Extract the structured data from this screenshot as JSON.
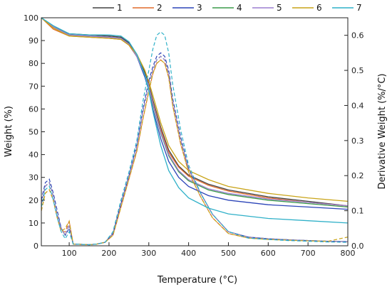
{
  "chart_data": {
    "type": "line",
    "title": "",
    "xlabel": "Temperature (°C)",
    "ylabel_left": "Weight (%)",
    "ylabel_right": "Derivative Weight (%/°C)",
    "xlim": [
      30,
      800
    ],
    "ylim_left": [
      0,
      100
    ],
    "ylim_right": [
      0,
      0.65
    ],
    "xticks": [
      100,
      200,
      300,
      400,
      500,
      600,
      700,
      800
    ],
    "yticks_left": [
      0,
      10,
      20,
      30,
      40,
      50,
      60,
      70,
      80,
      90,
      100
    ],
    "yticks_right": [
      0.0,
      0.1,
      0.2,
      0.3,
      0.4,
      0.5,
      0.6
    ],
    "grid": false,
    "legend_position": "top-right",
    "series": [
      {
        "name": "1",
        "color": "#404040",
        "weight": {
          "x": [
            30,
            60,
            100,
            150,
            200,
            230,
            250,
            270,
            290,
            300,
            310,
            330,
            350,
            375,
            400,
            450,
            500,
            600,
            700,
            800
          ],
          "y": [
            100,
            96,
            93,
            92.5,
            92,
            91.5,
            89,
            84,
            76,
            71,
            64,
            52,
            42,
            35,
            31,
            27,
            24.5,
            21.5,
            19.5,
            17.5
          ]
        },
        "dtg": {
          "x": [
            30,
            40,
            50,
            60,
            70,
            80,
            90,
            100,
            110,
            130,
            150,
            170,
            190,
            210,
            230,
            250,
            270,
            285,
            300,
            310,
            320,
            330,
            340,
            350,
            360,
            380,
            400,
            430,
            460,
            500,
            550,
            600,
            650,
            700,
            750,
            800
          ],
          "y": [
            0.12,
            0.17,
            0.18,
            0.14,
            0.09,
            0.05,
            0.03,
            0.06,
            0.005,
            0.004,
            0.003,
            0.005,
            0.01,
            0.035,
            0.12,
            0.2,
            0.28,
            0.38,
            0.46,
            0.5,
            0.53,
            0.54,
            0.53,
            0.49,
            0.41,
            0.3,
            0.22,
            0.15,
            0.09,
            0.04,
            0.025,
            0.02,
            0.017,
            0.015,
            0.013,
            0.012
          ]
        }
      },
      {
        "name": "2",
        "color": "#e06a2a",
        "weight": {
          "x": [
            30,
            60,
            100,
            150,
            200,
            230,
            250,
            270,
            290,
            300,
            310,
            330,
            350,
            375,
            400,
            450,
            500,
            600,
            700,
            800
          ],
          "y": [
            100,
            95,
            92,
            91.5,
            91,
            90.5,
            88,
            83,
            75,
            70,
            63,
            51,
            41,
            34.5,
            30.5,
            26.5,
            24,
            21,
            19,
            17.5
          ]
        },
        "dtg": {
          "x": [
            30,
            40,
            50,
            60,
            70,
            80,
            90,
            100,
            110,
            130,
            150,
            170,
            190,
            210,
            230,
            250,
            270,
            285,
            300,
            310,
            320,
            330,
            340,
            350,
            360,
            380,
            400,
            430,
            460,
            500,
            550,
            600,
            650,
            700,
            750,
            800
          ],
          "y": [
            0.1,
            0.15,
            0.16,
            0.13,
            0.08,
            0.04,
            0.04,
            0.07,
            0.005,
            0.004,
            0.003,
            0.005,
            0.01,
            0.03,
            0.11,
            0.19,
            0.27,
            0.36,
            0.44,
            0.49,
            0.52,
            0.53,
            0.52,
            0.48,
            0.4,
            0.29,
            0.21,
            0.14,
            0.08,
            0.035,
            0.022,
            0.018,
            0.016,
            0.014,
            0.012,
            0.011
          ]
        }
      },
      {
        "name": "3",
        "color": "#2b44b8",
        "weight": {
          "x": [
            30,
            60,
            100,
            150,
            200,
            230,
            250,
            270,
            290,
            300,
            310,
            330,
            350,
            375,
            400,
            450,
            500,
            600,
            700,
            800
          ],
          "y": [
            100,
            96,
            92.5,
            92,
            91.5,
            91,
            88.5,
            83,
            74,
            68,
            60,
            47,
            37,
            30,
            26,
            22,
            20,
            18,
            17,
            16
          ]
        },
        "dtg": {
          "x": [
            30,
            40,
            50,
            60,
            70,
            80,
            90,
            100,
            110,
            130,
            150,
            170,
            190,
            210,
            230,
            250,
            270,
            285,
            300,
            310,
            320,
            330,
            340,
            350,
            360,
            380,
            400,
            430,
            460,
            500,
            550,
            600,
            650,
            700,
            750,
            800
          ],
          "y": [
            0.13,
            0.18,
            0.19,
            0.15,
            0.1,
            0.05,
            0.03,
            0.05,
            0.005,
            0.004,
            0.003,
            0.005,
            0.01,
            0.035,
            0.12,
            0.2,
            0.29,
            0.39,
            0.47,
            0.51,
            0.54,
            0.55,
            0.54,
            0.5,
            0.42,
            0.31,
            0.22,
            0.15,
            0.09,
            0.04,
            0.025,
            0.02,
            0.017,
            0.015,
            0.013,
            0.012
          ]
        }
      },
      {
        "name": "4",
        "color": "#3a9a4a",
        "weight": {
          "x": [
            30,
            60,
            100,
            150,
            200,
            230,
            250,
            270,
            290,
            300,
            310,
            330,
            350,
            375,
            400,
            450,
            500,
            600,
            700,
            800
          ],
          "y": [
            100,
            96,
            92.5,
            92,
            91.5,
            91,
            88.5,
            83,
            75,
            69.5,
            62,
            49.5,
            39.5,
            32.5,
            28.5,
            24.5,
            22.5,
            20,
            18.5,
            17
          ]
        },
        "dtg": {
          "x": [
            30,
            40,
            50,
            60,
            70,
            80,
            90,
            100,
            110,
            130,
            150,
            170,
            190,
            210,
            230,
            250,
            270,
            285,
            300,
            310,
            320,
            330,
            340,
            350,
            360,
            380,
            400,
            430,
            460,
            500,
            550,
            600,
            650,
            700,
            750,
            800
          ],
          "y": [
            0.12,
            0.17,
            0.18,
            0.14,
            0.09,
            0.05,
            0.03,
            0.06,
            0.005,
            0.004,
            0.003,
            0.005,
            0.01,
            0.035,
            0.12,
            0.2,
            0.28,
            0.38,
            0.46,
            0.5,
            0.53,
            0.54,
            0.53,
            0.49,
            0.41,
            0.3,
            0.22,
            0.15,
            0.09,
            0.04,
            0.025,
            0.02,
            0.017,
            0.015,
            0.013,
            0.012
          ]
        }
      },
      {
        "name": "5",
        "color": "#9b7fd0",
        "weight": {
          "x": [
            30,
            60,
            100,
            150,
            200,
            230,
            250,
            270,
            290,
            300,
            310,
            330,
            350,
            375,
            400,
            450,
            500,
            600,
            700,
            800
          ],
          "y": [
            100,
            96,
            92.5,
            92,
            91.5,
            91,
            88.5,
            83,
            75,
            70,
            62.5,
            50,
            40,
            33,
            29,
            25,
            23,
            20.5,
            19,
            17.5
          ]
        },
        "dtg": {
          "x": [
            30,
            40,
            50,
            60,
            70,
            80,
            90,
            100,
            110,
            130,
            150,
            170,
            190,
            210,
            230,
            250,
            270,
            285,
            300,
            310,
            320,
            330,
            340,
            350,
            360,
            380,
            400,
            430,
            460,
            500,
            550,
            600,
            650,
            700,
            750,
            800
          ],
          "y": [
            0.12,
            0.17,
            0.18,
            0.14,
            0.09,
            0.05,
            0.03,
            0.06,
            0.005,
            0.004,
            0.003,
            0.005,
            0.01,
            0.035,
            0.12,
            0.2,
            0.28,
            0.38,
            0.46,
            0.5,
            0.53,
            0.54,
            0.53,
            0.49,
            0.41,
            0.3,
            0.22,
            0.15,
            0.09,
            0.04,
            0.025,
            0.02,
            0.017,
            0.015,
            0.013,
            0.012
          ]
        }
      },
      {
        "name": "6",
        "color": "#c9a418",
        "weight": {
          "x": [
            30,
            60,
            100,
            150,
            200,
            230,
            250,
            270,
            290,
            300,
            310,
            330,
            350,
            375,
            400,
            450,
            500,
            600,
            700,
            800
          ],
          "y": [
            100,
            95.5,
            92,
            91.5,
            91,
            90.5,
            88,
            84,
            77,
            72,
            66,
            54,
            44,
            37,
            33,
            29,
            26,
            23,
            21,
            19.5
          ]
        },
        "dtg": {
          "x": [
            30,
            40,
            50,
            60,
            70,
            80,
            90,
            100,
            110,
            130,
            150,
            170,
            190,
            210,
            230,
            250,
            270,
            285,
            300,
            310,
            320,
            330,
            340,
            350,
            360,
            380,
            400,
            430,
            460,
            500,
            550,
            600,
            650,
            700,
            750,
            800
          ],
          "y": [
            0.1,
            0.15,
            0.16,
            0.13,
            0.08,
            0.04,
            0.05,
            0.07,
            0.005,
            0.004,
            0.003,
            0.005,
            0.01,
            0.03,
            0.11,
            0.19,
            0.27,
            0.36,
            0.44,
            0.49,
            0.52,
            0.53,
            0.52,
            0.48,
            0.4,
            0.29,
            0.21,
            0.14,
            0.08,
            0.035,
            0.022,
            0.018,
            0.016,
            0.014,
            0.013,
            0.025
          ]
        }
      },
      {
        "name": "7",
        "color": "#2fb0c8",
        "weight": {
          "x": [
            30,
            60,
            100,
            150,
            200,
            230,
            250,
            270,
            290,
            300,
            310,
            330,
            350,
            375,
            400,
            450,
            500,
            600,
            700,
            800
          ],
          "y": [
            100,
            96.5,
            93,
            92.5,
            92.5,
            92,
            89.5,
            84,
            75,
            68,
            59,
            44,
            33,
            25.5,
            21,
            16.5,
            14,
            12,
            11,
            10
          ]
        },
        "dtg": {
          "x": [
            30,
            40,
            50,
            60,
            70,
            80,
            90,
            100,
            110,
            130,
            150,
            170,
            190,
            210,
            230,
            250,
            270,
            285,
            300,
            310,
            320,
            330,
            340,
            350,
            360,
            380,
            400,
            430,
            460,
            500,
            550,
            600,
            650,
            700,
            750,
            800
          ],
          "y": [
            0.11,
            0.16,
            0.17,
            0.13,
            0.08,
            0.04,
            0.02,
            0.04,
            0.005,
            0.004,
            0.003,
            0.005,
            0.01,
            0.04,
            0.13,
            0.21,
            0.3,
            0.41,
            0.5,
            0.56,
            0.6,
            0.61,
            0.6,
            0.55,
            0.46,
            0.33,
            0.23,
            0.15,
            0.09,
            0.04,
            0.022,
            0.018,
            0.015,
            0.013,
            0.011,
            0.01
          ]
        }
      }
    ]
  }
}
